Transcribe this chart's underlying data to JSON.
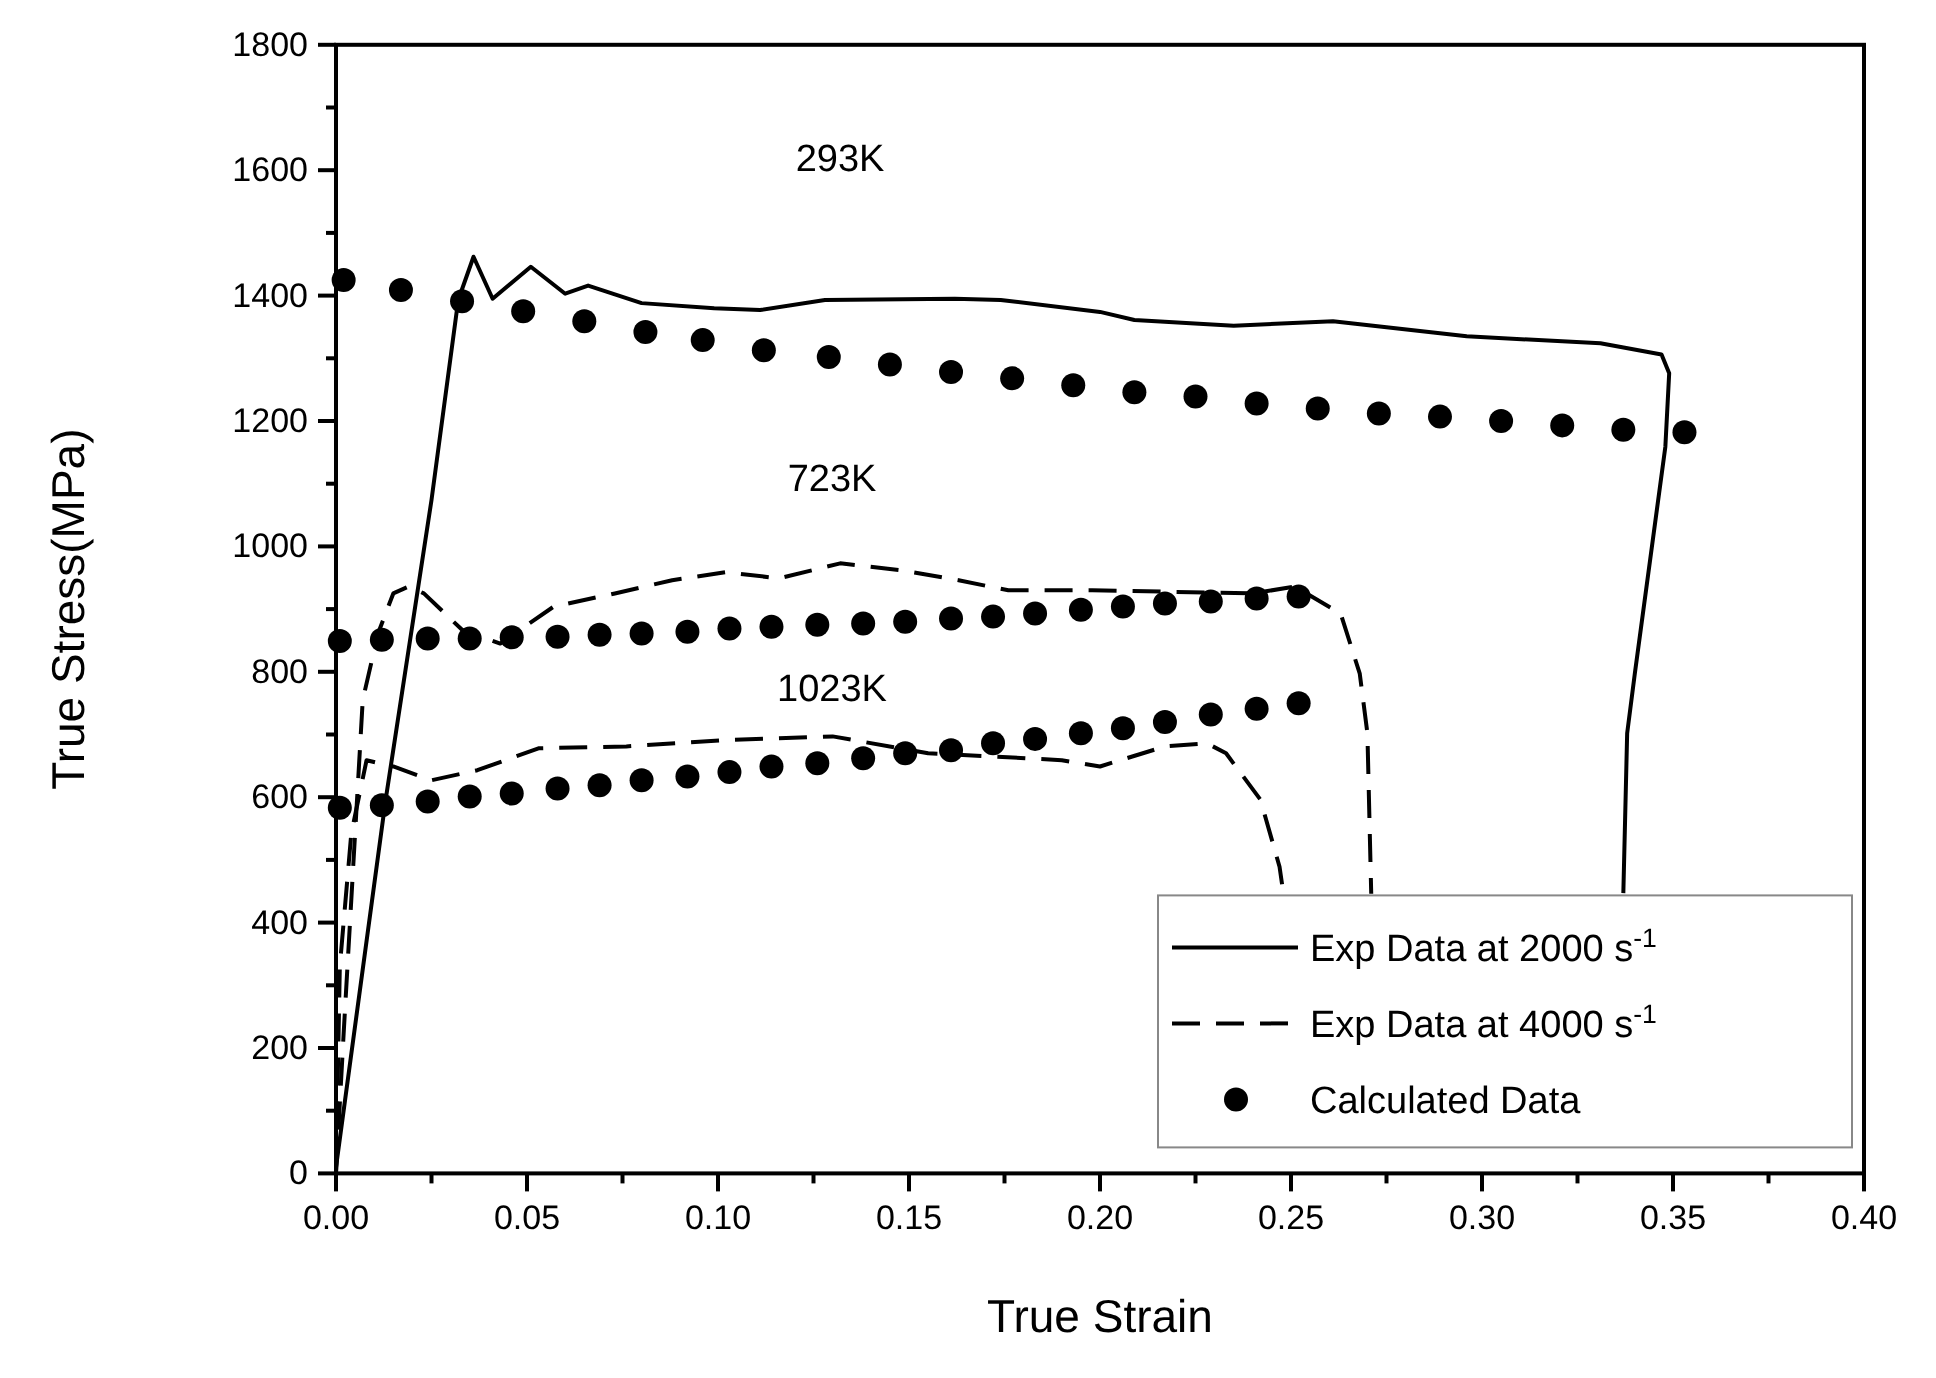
{
  "chart_data": {
    "type": "line",
    "xlabel": "True Strain",
    "ylabel": "True Stress(MPa)",
    "xlim": [
      0,
      0.4
    ],
    "ylim": [
      0,
      1800
    ],
    "xticks": [
      {
        "value": 0,
        "label": "0.00"
      },
      {
        "value": 0.025,
        "label": null
      },
      {
        "value": 0.05,
        "label": "0.05"
      },
      {
        "value": 0.075,
        "label": null
      },
      {
        "value": 0.1,
        "label": "0.10"
      },
      {
        "value": 0.125,
        "label": null
      },
      {
        "value": 0.15,
        "label": "0.15"
      },
      {
        "value": 0.175,
        "label": null
      },
      {
        "value": 0.2,
        "label": "0.20"
      },
      {
        "value": 0.225,
        "label": null
      },
      {
        "value": 0.25,
        "label": "0.25"
      },
      {
        "value": 0.275,
        "label": null
      },
      {
        "value": 0.3,
        "label": "0.30"
      },
      {
        "value": 0.325,
        "label": null
      },
      {
        "value": 0.35,
        "label": "0.35"
      },
      {
        "value": 0.375,
        "label": null
      },
      {
        "value": 0.4,
        "label": "0.40"
      }
    ],
    "yticks": [
      0,
      {
        "value": 100,
        "label": null
      },
      200,
      {
        "value": 300,
        "label": null
      },
      400,
      {
        "value": 500,
        "label": null
      },
      600,
      {
        "value": 700,
        "label": null
      },
      800,
      {
        "value": 900,
        "label": null
      },
      1000,
      {
        "value": 1100,
        "label": null
      },
      1200,
      {
        "value": 1300,
        "label": null
      },
      1400,
      {
        "value": 1500,
        "label": null
      },
      1600,
      {
        "value": 1700,
        "label": null
      },
      1800
    ],
    "grid": false,
    "legend": "bottom right",
    "annotations": [
      "293K",
      "723K",
      "1023K"
    ],
    "series": [
      {
        "name": "Exp Data at 2000 s$^{-1}$",
        "color": "#000000",
        "line_style": "solid",
        "marker": "none",
        "x": [
          0,
          0.013,
          0.025,
          0.032,
          0.036,
          0.041,
          0.051,
          0.06,
          0.066,
          0.08,
          0.099,
          0.111,
          0.128,
          0.162,
          0.174,
          0.2,
          0.209,
          0.235,
          0.261,
          0.296,
          0.331,
          0.347,
          0.349,
          0.348,
          0.34,
          0.338,
          0.337
        ],
        "values": [
          10,
          596,
          1074,
          1393,
          1462,
          1395,
          1446,
          1403,
          1416,
          1388,
          1380,
          1377,
          1393,
          1395,
          1393,
          1374,
          1361,
          1352,
          1359,
          1335,
          1324,
          1306,
          1276,
          1159,
          797,
          702,
          447
        ]
      },
      {
        "name": "Exp Data at 4000 s$^{-1}$",
        "color": "#000000",
        "line_style": "dashed",
        "marker": "none",
        "x": [
          0,
          0.002,
          0.004,
          0.007,
          0.011,
          0.015,
          0.019,
          0.023,
          0.033,
          0.043,
          0.057,
          0.073,
          0.088,
          0.102,
          0.116,
          0.132,
          0.148,
          0.163,
          0.176,
          0.198,
          0.24,
          0.251,
          0.263,
          0.268,
          0.27,
          0.271
        ],
        "values": [
          0,
          223,
          436,
          755,
          861,
          925,
          936,
          925,
          867,
          845,
          904,
          925,
          946,
          959,
          949,
          973,
          962,
          946,
          930,
          930,
          925,
          936,
          893,
          797,
          702,
          446
        ]
      },
      {
        "color": "#000000",
        "line_style": "dashed",
        "marker": "none",
        "x": [
          0,
          0.001,
          0.004,
          0.008,
          0.015,
          0.025,
          0.037,
          0.053,
          0.076,
          0.102,
          0.13,
          0.155,
          0.172,
          0.19,
          0.2,
          0.217,
          0.228,
          0.233,
          0.242,
          0.247,
          0.248
        ],
        "values": [
          0,
          330,
          542,
          659,
          649,
          627,
          643,
          678,
          681,
          691,
          697,
          670,
          665,
          659,
          649,
          681,
          686,
          670,
          596,
          489,
          447
        ]
      },
      {
        "name": "Calculated Data",
        "type": "scatter",
        "color": "#000000",
        "marker": "circle",
        "x": [
          0.002,
          0.017,
          0.033,
          0.049,
          0.065,
          0.081,
          0.096,
          0.112,
          0.129,
          0.145,
          0.161,
          0.177,
          0.193,
          0.209,
          0.225,
          0.241,
          0.257,
          0.273,
          0.289,
          0.305,
          0.321,
          0.337,
          0.353
        ],
        "values": [
          1425,
          1409,
          1391,
          1375,
          1359,
          1342,
          1329,
          1313,
          1302,
          1290,
          1278,
          1268,
          1257,
          1246,
          1239,
          1228,
          1220,
          1212,
          1207,
          1200,
          1193,
          1186,
          1182
        ]
      },
      {
        "type": "scatter",
        "color": "#000000",
        "marker": "circle",
        "x": [
          0.001,
          0.012,
          0.024,
          0.035,
          0.046,
          0.058,
          0.069,
          0.08,
          0.092,
          0.103,
          0.114,
          0.126,
          0.138,
          0.149,
          0.161,
          0.172,
          0.183,
          0.195,
          0.206,
          0.217,
          0.229,
          0.241,
          0.252
        ],
        "values": [
          849,
          851,
          853,
          853,
          855,
          856,
          859,
          861,
          864,
          869,
          872,
          875,
          877,
          880,
          885,
          888,
          893,
          899,
          904,
          909,
          912,
          917,
          920
        ]
      },
      {
        "type": "scatter",
        "color": "#000000",
        "marker": "circle",
        "x": [
          0.001,
          0.012,
          0.024,
          0.035,
          0.046,
          0.058,
          0.069,
          0.08,
          0.092,
          0.103,
          0.114,
          0.126,
          0.138,
          0.149,
          0.161,
          0.172,
          0.183,
          0.195,
          0.206,
          0.217,
          0.229,
          0.241,
          0.252
        ],
        "values": [
          583,
          587,
          593,
          601,
          606,
          614,
          619,
          627,
          633,
          640,
          649,
          654,
          662,
          670,
          675,
          686,
          693,
          702,
          710,
          720,
          732,
          741,
          750
        ]
      }
    ]
  }
}
